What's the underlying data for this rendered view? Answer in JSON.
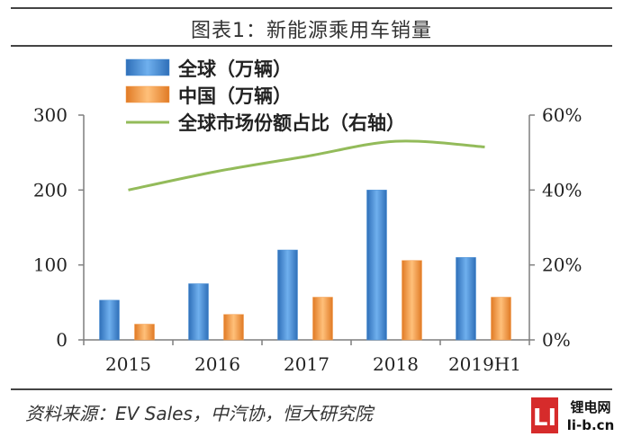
{
  "title": "图表1：新能源乘用车销量",
  "source": "资料来源：EV Sales，中汽协，恒大研究院",
  "watermark": {
    "logo": "LI",
    "name": "锂电网",
    "domain": "li-b.cn"
  },
  "colors": {
    "global": "#4a8fd6",
    "china": "#f39b4c",
    "share": "#93bb5a",
    "axis": "#7f7f7f",
    "text": "#222222"
  },
  "chart_data": {
    "type": "bar",
    "categories": [
      "2015",
      "2016",
      "2017",
      "2018",
      "2019H1"
    ],
    "series": [
      {
        "name": "全球（万辆）",
        "type": "bar",
        "axis": "left",
        "values": [
          53,
          75,
          120,
          200,
          110
        ]
      },
      {
        "name": "中国（万辆）",
        "type": "bar",
        "axis": "left",
        "values": [
          21,
          34,
          57,
          106,
          57
        ]
      },
      {
        "name": "全球市场份额占比（右轴）",
        "type": "line",
        "axis": "right",
        "values": [
          40,
          45,
          49,
          53,
          51.5
        ]
      }
    ],
    "yleft": {
      "min": 0,
      "max": 300,
      "ticks": [
        "0",
        "100",
        "200",
        "300"
      ]
    },
    "yright": {
      "min": 0,
      "max": 60,
      "ticks": [
        "0%",
        "20%",
        "40%",
        "60%"
      ]
    },
    "legend_position": "top-left",
    "grid": false
  }
}
